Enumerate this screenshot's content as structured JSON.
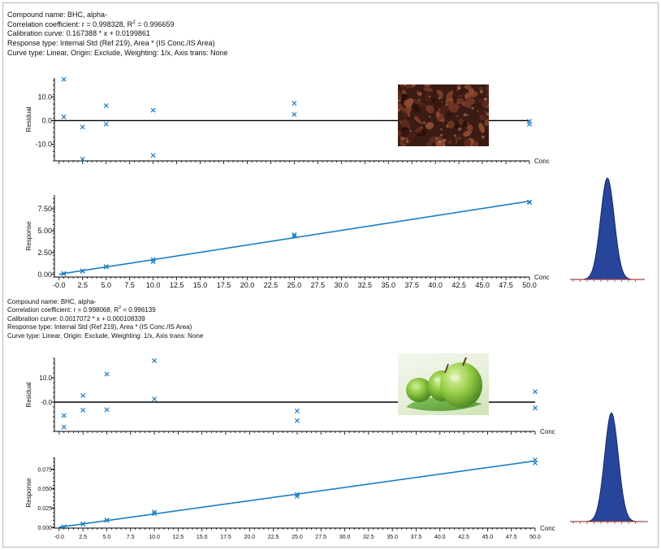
{
  "colors": {
    "marker": "#1a7fc4",
    "fit_line": "#1a7fc4",
    "axis": "#000000",
    "peak_fill": "#27459a",
    "peak_stroke": "#0d1f55",
    "peak_baseline": "#b0413e",
    "apple": "#6fb43a",
    "raisin": "#4a2218"
  },
  "sections": [
    {
      "header": {
        "compound": "Compound name: BHC, alpha-",
        "correlation_text": "Correlation coefficient: r = 0.998328, R",
        "correlation_sup": "2",
        "correlation_tail": " = 0.996659",
        "calibration": "Calibration curve: 0.167388 * x + 0.0199861",
        "response_type": "Response type: Internal Std (Ref 219), Area * (IS Conc./IS Area)",
        "curve_type": "Curve type: Linear, Origin: Exclude, Weighting: 1/x, Axis trans: None"
      },
      "photo_icon": "raisins-photo"
    },
    {
      "header": {
        "compound": "Compound name: BHC, alpha-",
        "correlation_text": "Correlation coefficient: r = 0.998068, R",
        "correlation_sup": "2",
        "correlation_tail": " = 0.996139",
        "calibration": "Calibration curve: 0.0017072 * x + 0.000108339",
        "response_type": "Response type: Internal Std (Ref 219), Area * (IS Conc./IS Area)",
        "curve_type": "Curve type: Linear, Origin: Exclude, Weighting: 1/x, Axis trans: None"
      },
      "photo_icon": "green-apples-photo"
    }
  ],
  "chart_data": [
    {
      "type": "scatter",
      "name": "residual-1",
      "ylabel": "Residual",
      "xlabel": "Conc",
      "yticks": [
        10.0,
        0.0,
        -10.0
      ],
      "ytick_labels": [
        "10.0",
        "0.0",
        "-10.0"
      ],
      "xlim": [
        -0.5,
        50.0
      ],
      "ylim": [
        -17,
        18
      ],
      "zero_line": true,
      "points": [
        [
          0.5,
          17.4
        ],
        [
          0.5,
          1.6
        ],
        [
          2.5,
          -2.7
        ],
        [
          2.5,
          -16.3
        ],
        [
          5,
          6.3
        ],
        [
          5,
          -1.5
        ],
        [
          10,
          4.4
        ],
        [
          10,
          -14.7
        ],
        [
          25,
          7.3
        ],
        [
          25,
          2.6
        ],
        [
          50,
          -0.3
        ],
        [
          50,
          -1.5
        ]
      ]
    },
    {
      "type": "scatter",
      "name": "response-1",
      "ylabel": "Response",
      "xlabel": "Conc",
      "yticks": [
        7.5,
        5.0,
        2.5,
        0.0
      ],
      "ytick_labels": [
        "7.50",
        "5.00",
        "2.50",
        "0.00"
      ],
      "xticks": [
        0,
        2.5,
        5,
        7.5,
        10,
        12.5,
        15,
        17.5,
        20,
        22.5,
        25,
        27.5,
        30,
        32.5,
        35,
        37.5,
        40,
        42.5,
        45,
        47.5,
        50
      ],
      "xtick_labels": [
        "-0.0",
        "2.5",
        "5.0",
        "7.5",
        "10.0",
        "12.5",
        "15.0",
        "17.5",
        "20.0",
        "22.5",
        "25.0",
        "27.5",
        "30.0",
        "32.5",
        "35.0",
        "37.5",
        "40.0",
        "42.5",
        "45.0",
        "47.5",
        "50.0"
      ],
      "xlim": [
        -0.5,
        50.0
      ],
      "ylim": [
        -0.3,
        9.1
      ],
      "fit": {
        "slope": 0.167388,
        "intercept": 0.0199861
      },
      "points": [
        [
          0.5,
          0.11
        ],
        [
          0.5,
          0.08
        ],
        [
          2.5,
          0.4
        ],
        [
          2.5,
          0.37
        ],
        [
          5,
          0.9
        ],
        [
          5,
          0.87
        ],
        [
          10,
          1.7
        ],
        [
          10,
          1.45
        ],
        [
          25,
          4.55
        ],
        [
          25,
          4.38
        ],
        [
          50,
          8.3
        ],
        [
          50,
          8.25
        ]
      ]
    },
    {
      "type": "scatter",
      "name": "residual-2",
      "ylabel": "Residual",
      "xlabel": "Conc",
      "yticks": [
        10.0,
        0.0
      ],
      "ytick_labels": [
        "10.0",
        "-0.0"
      ],
      "xlim": [
        -0.5,
        50.0
      ],
      "ylim": [
        -12,
        18
      ],
      "zero_line": true,
      "points": [
        [
          0.5,
          -5.5
        ],
        [
          0.5,
          -10.2
        ],
        [
          2.5,
          2.7
        ],
        [
          2.5,
          -3.3
        ],
        [
          5,
          11.5
        ],
        [
          5,
          -3.1
        ],
        [
          10,
          17
        ],
        [
          10,
          1.3
        ],
        [
          25,
          -3.6
        ],
        [
          25,
          -7.6
        ],
        [
          50,
          4.3
        ],
        [
          50,
          -2.4
        ]
      ]
    },
    {
      "type": "scatter",
      "name": "response-2",
      "ylabel": "Response",
      "xlabel": "Conc",
      "yticks": [
        0.075,
        0.05,
        0.025,
        0.0
      ],
      "ytick_labels": [
        "0.075",
        "0.050",
        "0.025",
        "0.000"
      ],
      "xticks": [
        0,
        2.5,
        5,
        7.5,
        10,
        12.5,
        15,
        17.5,
        20,
        22.5,
        25,
        27.5,
        30,
        32.5,
        35,
        37.5,
        40,
        42.5,
        45,
        47.5,
        50
      ],
      "xtick_labels": [
        "-0.0",
        "2.5",
        "5.0",
        "7.5",
        "10.0",
        "12.5",
        "15.0",
        "17.5",
        "20.0",
        "22.5",
        "25.0",
        "27.5",
        "30.0",
        "32.5",
        "35.0",
        "37.5",
        "40.0",
        "42.5",
        "45.0",
        "47.5",
        "50.0"
      ],
      "xlim": [
        -0.5,
        50.0
      ],
      "ylim": [
        -0.001,
        0.09
      ],
      "fit": {
        "slope": 0.0017072,
        "intercept": 0.000108339
      },
      "points": [
        [
          0.5,
          0.0008
        ],
        [
          0.5,
          0.0005
        ],
        [
          2.5,
          0.0043
        ],
        [
          2.5,
          0.0041
        ],
        [
          5,
          0.0093
        ],
        [
          5,
          0.0088
        ],
        [
          10,
          0.0196
        ],
        [
          10,
          0.0174
        ],
        [
          25,
          0.0425
        ],
        [
          25,
          0.0398
        ],
        [
          50,
          0.0869
        ],
        [
          50,
          0.0828
        ]
      ]
    },
    {
      "type": "area",
      "name": "peak-1",
      "shape": "gaussian"
    },
    {
      "type": "area",
      "name": "peak-2",
      "shape": "gaussian"
    }
  ]
}
